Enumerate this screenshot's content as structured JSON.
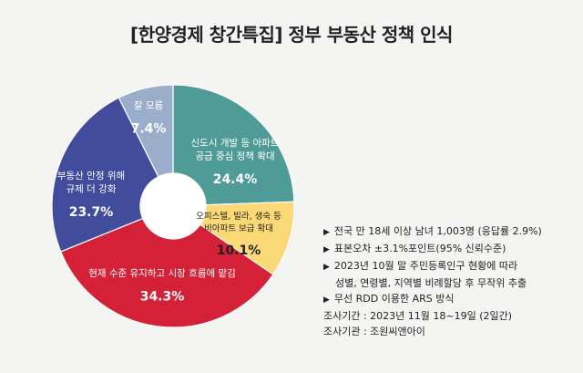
{
  "title": "[한양경제 창간특집] 정부 부동산 정책 인식",
  "chart_data": {
    "type": "pie",
    "donut": true,
    "title": "[한양경제 창간특집] 정부 부동산 정책 인식",
    "slices": [
      {
        "label": "신도시 개발 등 아파트 공급 중심 정책 확대",
        "label_lines": [
          "신도시 개발 등 아파트",
          "공급 중심 정책 확대"
        ],
        "value": 24.4,
        "value_text": "24.4%",
        "color": "#4f9b98",
        "text_color": "#ffffff"
      },
      {
        "label": "오피스텔, 빌라, 생숙 등 비아파트 보급 확대",
        "label_lines": [
          "오피스텔, 빌라, 생숙 등",
          "비아파트 보급 확대"
        ],
        "value": 10.1,
        "value_text": "10.1%",
        "color": "#fbd976",
        "text_color": "#222222"
      },
      {
        "label": "현재 수준 유지하고 시장 흐름에 맡김",
        "label_lines": [
          "현재 수준 유지하고 시장 흐름에 맡김"
        ],
        "value": 34.3,
        "value_text": "34.3%",
        "color": "#d42138",
        "text_color": "#ffffff"
      },
      {
        "label": "부동산 안정 위해 규제 더 강화",
        "label_lines": [
          "부동산 안정 위해",
          "규제 더 강화"
        ],
        "value": 23.7,
        "value_text": "23.7%",
        "color": "#414c9d",
        "text_color": "#ffffff"
      },
      {
        "label": "잘 모름",
        "label_lines": [
          "잘 모름"
        ],
        "value": 7.4,
        "value_text": "7.4%",
        "color": "#9aadcb",
        "text_color": "#ffffff"
      }
    ]
  },
  "notes": [
    {
      "bullet": "▶",
      "text": "전국 만 18세 이상 남녀 1,003명 (응답률 2.9%)"
    },
    {
      "bullet": "▶",
      "text": "표본오차 ±3.1%포인트(95% 신뢰수준)"
    },
    {
      "bullet": "▶",
      "text": "2023년 10월 말 주민등록인구 현황에 따라"
    },
    {
      "bullet": "",
      "text": "성별, 연령별, 지역별 비례할당 후 무작위 추출",
      "indent": true
    },
    {
      "bullet": "▶",
      "text": "무선 RDD 이용한 ARS 방식"
    },
    {
      "bullet": "",
      "text": "조사기간 : 2023년 11월 18~19일 (2일간)"
    },
    {
      "bullet": "",
      "text": "조사기관 : 조원씨앤아이"
    }
  ]
}
